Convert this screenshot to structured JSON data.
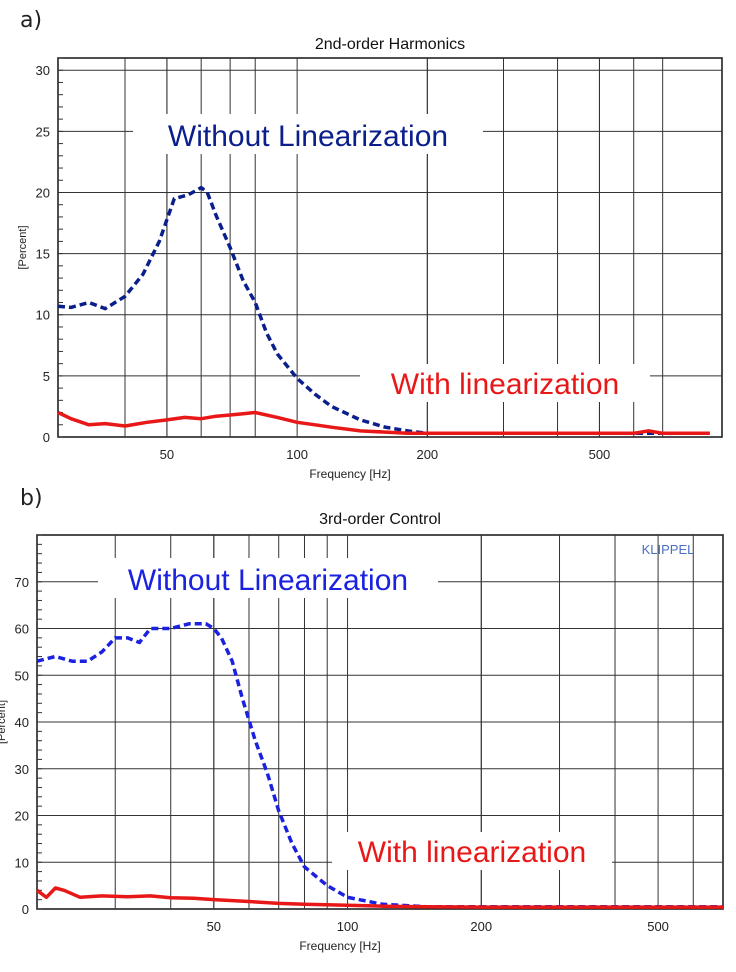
{
  "panels": [
    {
      "letter": "a)"
    },
    {
      "letter": "b)"
    }
  ],
  "chart_data": [
    {
      "type": "line",
      "title": "2nd-order Harmonics",
      "xlabel": "Frequency [Hz]",
      "ylabel": "[Percent]",
      "xscale": "log",
      "xlim": [
        28,
        960
      ],
      "ylim": [
        0,
        31
      ],
      "yticks": [
        0,
        5,
        10,
        15,
        20,
        25,
        30
      ],
      "xticks": [
        50,
        100,
        200,
        500
      ],
      "grid": true,
      "annotations": [
        "Without Linearization",
        "With linearization"
      ],
      "series": [
        {
          "name": "Without Linearization",
          "color": "#0b1f8c",
          "style": "dashed",
          "x": [
            28,
            30,
            33,
            36,
            40,
            44,
            48,
            52,
            56,
            60,
            62,
            65,
            70,
            75,
            80,
            85,
            90,
            100,
            110,
            120,
            140,
            160,
            180,
            200,
            250,
            300,
            400,
            500,
            600,
            700,
            800,
            900
          ],
          "y": [
            10.7,
            10.6,
            11.0,
            10.5,
            11.5,
            13.3,
            16.0,
            19.5,
            19.8,
            20.4,
            20.0,
            18.1,
            15.5,
            12.8,
            11.0,
            8.5,
            6.8,
            4.8,
            3.5,
            2.5,
            1.4,
            0.8,
            0.5,
            0.3,
            0.3,
            0.3,
            0.3,
            0.3,
            0.3,
            0.3,
            0.3,
            0.3
          ]
        },
        {
          "name": "With linearization",
          "color": "#e81818",
          "style": "solid",
          "x": [
            28,
            30,
            33,
            36,
            40,
            45,
            50,
            55,
            60,
            65,
            70,
            75,
            80,
            90,
            100,
            110,
            120,
            140,
            160,
            180,
            200,
            250,
            300,
            400,
            500,
            600,
            650,
            700,
            800,
            900
          ],
          "y": [
            2.0,
            1.5,
            1.0,
            1.1,
            0.9,
            1.2,
            1.4,
            1.6,
            1.5,
            1.7,
            1.8,
            1.9,
            2.0,
            1.6,
            1.2,
            1.0,
            0.8,
            0.5,
            0.4,
            0.3,
            0.3,
            0.3,
            0.3,
            0.3,
            0.3,
            0.3,
            0.5,
            0.3,
            0.3,
            0.3
          ]
        }
      ]
    },
    {
      "type": "line",
      "title": "3rd-order Control",
      "xlabel": "Frequency [Hz]",
      "ylabel": "[Percent]",
      "xscale": "log",
      "xlim": [
        20,
        700
      ],
      "ylim": [
        0,
        80
      ],
      "yticks": [
        0,
        10,
        20,
        30,
        40,
        50,
        60,
        70
      ],
      "xticks": [
        50,
        100,
        200,
        500
      ],
      "grid": true,
      "watermark": "KLIPPEL",
      "annotations": [
        "Without Linearization",
        "With linearization"
      ],
      "series": [
        {
          "name": "Without Linearization",
          "color": "#1a22e0",
          "style": "dashed",
          "x": [
            20,
            22,
            24,
            26,
            28,
            30,
            32,
            34,
            36,
            40,
            44,
            48,
            50,
            52,
            55,
            58,
            62,
            66,
            70,
            75,
            80,
            90,
            100,
            120,
            150,
            200,
            300,
            500,
            700
          ],
          "y": [
            53,
            54,
            53,
            53,
            55,
            58,
            58,
            57,
            60,
            60,
            61,
            61,
            60,
            58,
            53,
            45,
            36,
            29,
            21,
            14,
            9,
            5,
            2.5,
            1,
            0.5,
            0.5,
            0.5,
            0.5,
            0.5
          ]
        },
        {
          "name": "With linearization",
          "color": "#e81818",
          "style": "solid",
          "x": [
            20,
            21,
            22,
            23,
            25,
            28,
            32,
            36,
            40,
            45,
            50,
            60,
            70,
            80,
            100,
            120,
            150,
            200,
            300,
            500,
            700
          ],
          "y": [
            4,
            2.5,
            4.5,
            4,
            2.5,
            2.8,
            2.6,
            2.8,
            2.4,
            2.3,
            2.0,
            1.6,
            1.2,
            1.0,
            0.8,
            0.6,
            0.5,
            0.4,
            0.4,
            0.4,
            0.4
          ]
        }
      ]
    }
  ]
}
